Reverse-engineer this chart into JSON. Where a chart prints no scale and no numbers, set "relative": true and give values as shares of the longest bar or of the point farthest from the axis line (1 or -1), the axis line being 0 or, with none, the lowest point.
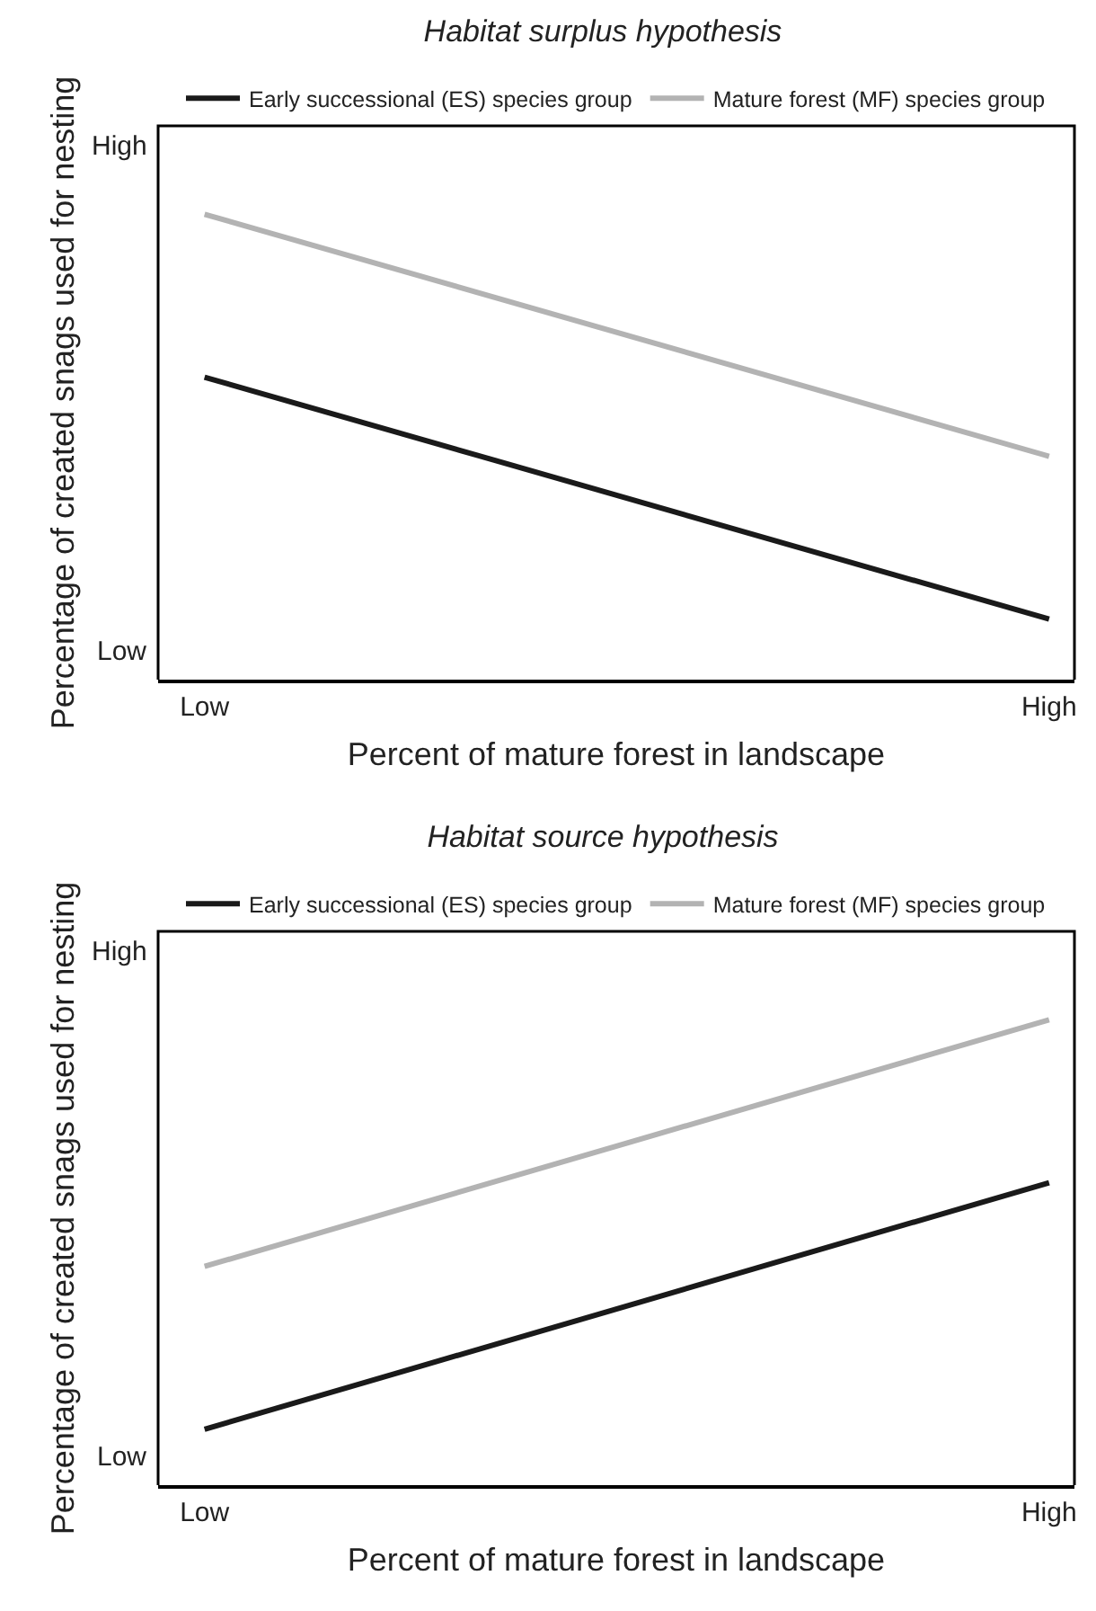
{
  "chart_data": [
    {
      "type": "line",
      "title": "Habitat surplus hypothesis",
      "xlabel": "Percent of mature forest in landscape",
      "ylabel": "Percentage of created snags used for nesting",
      "categories": [
        "Low",
        "High"
      ],
      "relative": true,
      "series": [
        {
          "name": "Early successional (ES) species group",
          "color": "#1a1a1a",
          "values": [
            0.65,
            0.13
          ]
        },
        {
          "name": "Mature forest (MF) species group",
          "color": "#b3b3b3",
          "values": [
            1,
            0.48
          ]
        }
      ],
      "annotations": [
        "High",
        "Low"
      ],
      "grid": false,
      "legend": "top",
      "marker": "none",
      "line_style": "solid"
    },
    {
      "type": "line",
      "title": "Habitat source hypothesis",
      "xlabel": "Percent of mature forest in landscape",
      "ylabel": "Percentage of created snags used for nesting",
      "categories": [
        "Low",
        "High"
      ],
      "relative": true,
      "series": [
        {
          "name": "Early successional (ES) species group",
          "color": "#1a1a1a",
          "values": [
            0.12,
            0.65
          ]
        },
        {
          "name": "Mature forest (MF) species group",
          "color": "#b3b3b3",
          "values": [
            0.47,
            1
          ]
        }
      ],
      "annotations": [
        "High",
        "Low"
      ],
      "grid": false,
      "legend": "top",
      "marker": "none",
      "line_style": "solid"
    }
  ]
}
